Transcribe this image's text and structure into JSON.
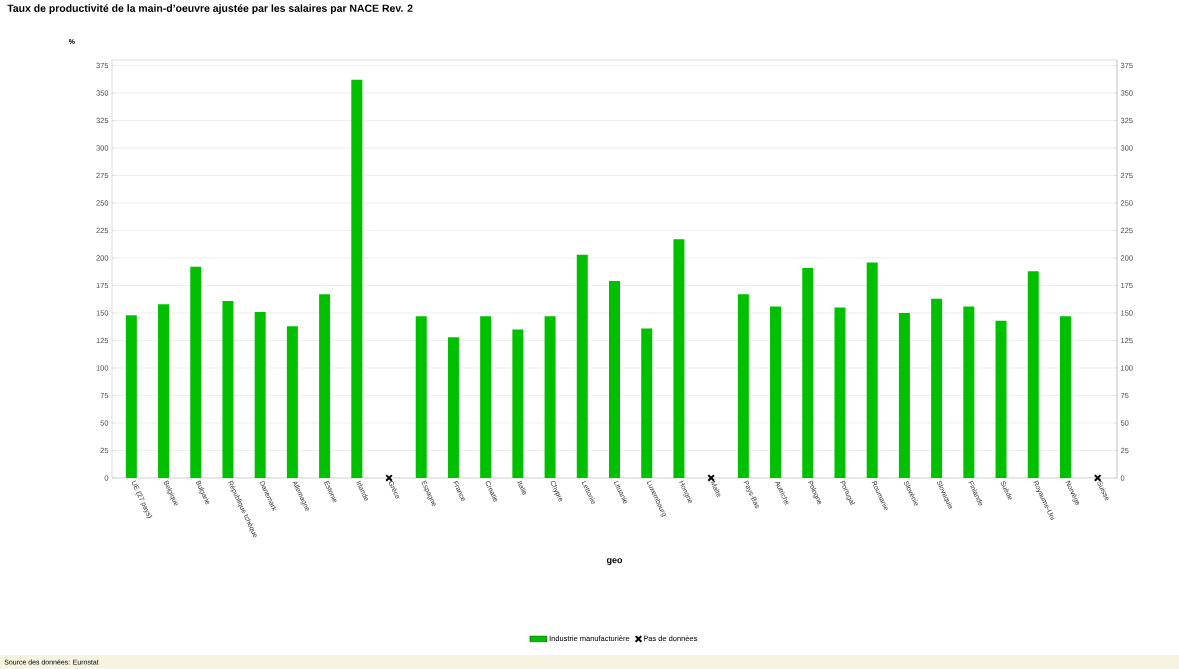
{
  "chart_data": {
    "type": "bar",
    "title": "Taux de productivité de la main-d’oeuvre ajustée par les salaires par NACE Rev. 2",
    "ylabel": "%",
    "xlabel": "geo",
    "categories": [
      "UE (27 pays)",
      "Belgique",
      "Bulgarie",
      "République tchèque",
      "Danemark",
      "Allemagne",
      "Estonie",
      "Irlande",
      "Grèce",
      "Espagne",
      "France",
      "Croatie",
      "Italie",
      "Chypre",
      "Lettonie",
      "Lituanie",
      "Luxembourg",
      "Hongrie",
      "Malte",
      "Pays-Bas",
      "Autriche",
      "Pologne",
      "Portugal",
      "Roumanie",
      "Slovénie",
      "Slovaquie",
      "Finlande",
      "Suède",
      "Royaume-Uni",
      "Norvège",
      "Suisse"
    ],
    "series": [
      {
        "name": "Industrie manufacturière",
        "color": "#00c000",
        "values": [
          148,
          158,
          192,
          161,
          151,
          138,
          167,
          362,
          null,
          147,
          128,
          147,
          135,
          147,
          203,
          179,
          136,
          217,
          null,
          167,
          156,
          191,
          155,
          196,
          150,
          163,
          156,
          143,
          188,
          147,
          null
        ]
      },
      {
        "name": "Pas de données",
        "type": "scatter",
        "marker": "cross",
        "color": "#000000",
        "x": [
          "Grèce",
          "Malte",
          "Suisse"
        ],
        "values": [
          0,
          0,
          0
        ]
      }
    ],
    "ylim": [
      0,
      380
    ],
    "yticks": [
      0,
      25,
      50,
      75,
      100,
      125,
      150,
      175,
      200,
      225,
      250,
      275,
      300,
      325,
      350,
      375
    ],
    "y2lim": [
      0,
      380
    ],
    "y2ticks": [
      0,
      25,
      50,
      75,
      100,
      125,
      150,
      175,
      200,
      225,
      250,
      275,
      300,
      325,
      350,
      375
    ],
    "grid": "y",
    "legend": "bottom",
    "annotations": [
      "Source des données: Eurostat"
    ]
  }
}
